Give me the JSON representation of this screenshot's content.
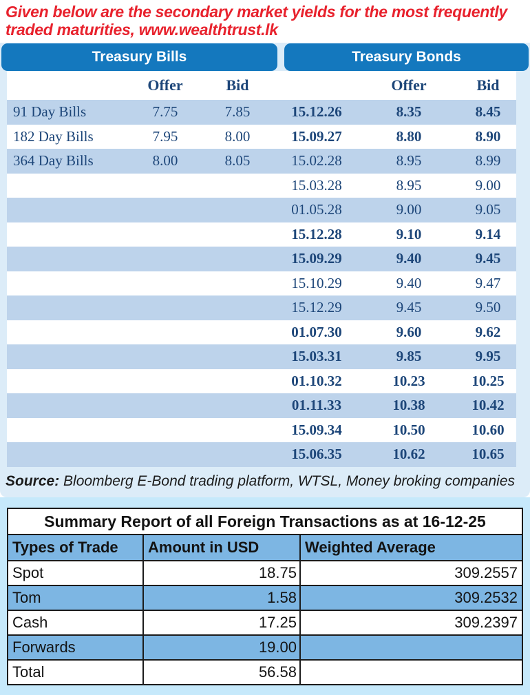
{
  "heading": {
    "line1": "Given below are the secondary market yields for the most frequently",
    "line2": "traded maturities, www.wealthtrust.lk"
  },
  "treasury": {
    "bills_title": "Treasury Bills",
    "bonds_title": "Treasury Bonds",
    "col_offer": "Offer",
    "col_bid": "Bid",
    "bills": [
      {
        "label": "91 Day Bills",
        "offer": "7.75",
        "bid": "7.85"
      },
      {
        "label": "182 Day Bills",
        "offer": "7.95",
        "bid": "8.00"
      },
      {
        "label": "364 Day Bills",
        "offer": "8.00",
        "bid": "8.05"
      }
    ],
    "bonds": [
      {
        "date": "15.12.26",
        "offer": "8.35",
        "bid": "8.45",
        "bold": true
      },
      {
        "date": "15.09.27",
        "offer": "8.80",
        "bid": "8.90",
        "bold": true
      },
      {
        "date": "15.02.28",
        "offer": "8.95",
        "bid": "8.99",
        "bold": false
      },
      {
        "date": "15.03.28",
        "offer": "8.95",
        "bid": "9.00",
        "bold": false
      },
      {
        "date": "01.05.28",
        "offer": "9.00",
        "bid": "9.05",
        "bold": false
      },
      {
        "date": "15.12.28",
        "offer": "9.10",
        "bid": "9.14",
        "bold": true
      },
      {
        "date": "15.09.29",
        "offer": "9.40",
        "bid": "9.45",
        "bold": true
      },
      {
        "date": "15.10.29",
        "offer": "9.40",
        "bid": "9.47",
        "bold": false
      },
      {
        "date": "15.12.29",
        "offer": "9.45",
        "bid": "9.50",
        "bold": false
      },
      {
        "date": "01.07.30",
        "offer": "9.60",
        "bid": "9.62",
        "bold": true
      },
      {
        "date": "15.03.31",
        "offer": "9.85",
        "bid": "9.95",
        "bold": true
      },
      {
        "date": "01.10.32",
        "offer": "10.23",
        "bid": "10.25",
        "bold": true
      },
      {
        "date": "01.11.33",
        "offer": "10.38",
        "bid": "10.42",
        "bold": true
      },
      {
        "date": "15.09.34",
        "offer": "10.50",
        "bid": "10.60",
        "bold": true
      },
      {
        "date": "15.06.35",
        "offer": "10.62",
        "bid": "10.65",
        "bold": true
      }
    ]
  },
  "source": {
    "label": "Source:",
    "text": " Bloomberg E-Bond trading platform, WTSL, Money broking companies"
  },
  "summary": {
    "title": "Summary Report of all Foreign Transactions as at 16-12-25",
    "headers": [
      "Types of Trade",
      "Amount in USD",
      "Weighted Average"
    ],
    "rows": [
      {
        "type": "Spot",
        "amount": "18.75",
        "weighted": "309.2557"
      },
      {
        "type": "Tom",
        "amount": "1.58",
        "weighted": "309.2532"
      },
      {
        "type": "Cash",
        "amount": "17.25",
        "weighted": "309.2397"
      },
      {
        "type": "Forwards",
        "amount": "19.00",
        "weighted": ""
      },
      {
        "type": "Total",
        "amount": "56.58",
        "weighted": ""
      }
    ]
  },
  "colors": {
    "heading_red": "#e8222d",
    "bar_blue": "#1478be",
    "navy_text": "#1d4679",
    "band_blue": "#bdd3eb",
    "panel_light": "#dcecf8",
    "panel_bottom": "#c6e9fb",
    "summary_row_blue": "#7db6e3",
    "border_black": "#1b1b1b"
  }
}
